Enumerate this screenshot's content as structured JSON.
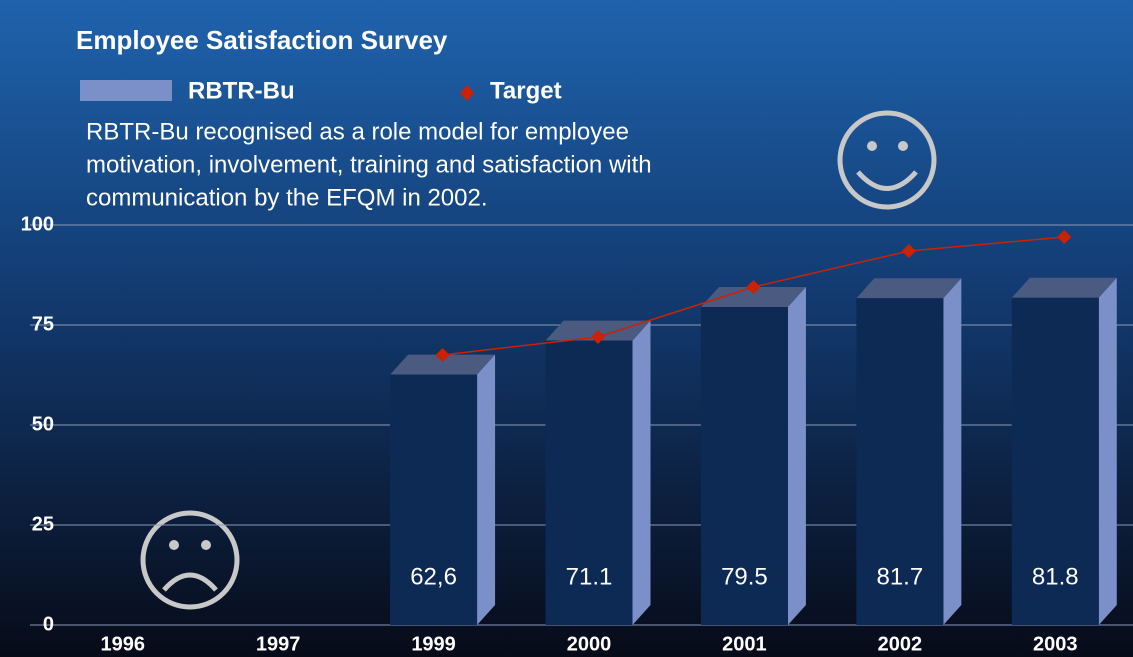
{
  "chart_data": {
    "type": "bar",
    "title": "Employee Satisfaction Survey",
    "annotation": [
      "RBTR-Bu recognised as a role model for employee",
      "motivation, involvement, training and satisfaction with",
      "communication by the EFQM in 2002."
    ],
    "categories": [
      "1996",
      "1997",
      "1999",
      "2000",
      "2001",
      "2002",
      "2003"
    ],
    "series": [
      {
        "name": "RBTR-Bu",
        "type": "bar",
        "color": "#0d2a55",
        "side_color": "#7b8fc8",
        "top_color": "#4a5a80",
        "values": [
          null,
          null,
          62.6,
          71.1,
          79.5,
          81.7,
          81.8
        ],
        "value_labels": [
          null,
          null,
          "62,6",
          "71.1",
          "79.5",
          "81.7",
          "81.8"
        ]
      },
      {
        "name": "Target",
        "type": "line",
        "color": "#cc2200",
        "values": [
          null,
          null,
          65,
          69.5,
          82,
          91,
          94.5
        ]
      }
    ],
    "ylim": [
      0,
      100
    ],
    "yticks": [
      0,
      25,
      50,
      75,
      100
    ],
    "grid": true
  }
}
